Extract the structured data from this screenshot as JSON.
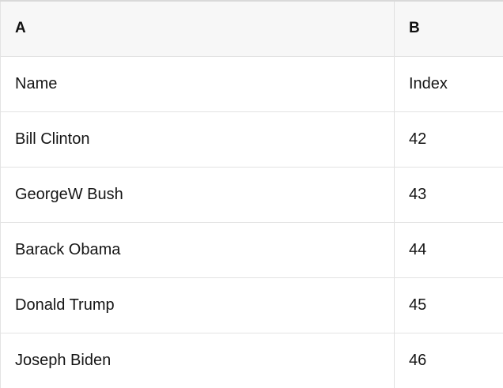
{
  "table": {
    "columns": [
      {
        "label": "A"
      },
      {
        "label": "B"
      }
    ],
    "rows": [
      {
        "a": "Name",
        "b": "Index"
      },
      {
        "a": "Bill Clinton",
        "b": "42"
      },
      {
        "a": "GeorgeW Bush",
        "b": "43"
      },
      {
        "a": "Barack Obama",
        "b": "44"
      },
      {
        "a": "Donald Trump",
        "b": "45"
      },
      {
        "a": "Joseph Biden",
        "b": "46"
      }
    ]
  },
  "colors": {
    "header_background": "#f7f7f7",
    "grid_border": "#e3e3e3",
    "top_border": "#d9d9d9",
    "text": "#151515"
  }
}
